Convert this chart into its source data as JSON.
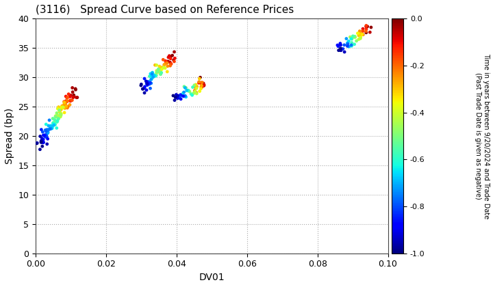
{
  "title": "(3116)   Spread Curve based on Reference Prices",
  "xlabel": "DV01",
  "ylabel": "Spread (bp)",
  "xlim": [
    0,
    0.1
  ],
  "ylim": [
    0,
    40
  ],
  "xticks": [
    0.0,
    0.02,
    0.04,
    0.06,
    0.08,
    0.1
  ],
  "yticks": [
    0,
    5,
    10,
    15,
    20,
    25,
    30,
    35,
    40
  ],
  "colorbar_label_line1": "Time in years between 9/20/2024 and Trade Date",
  "colorbar_label_line2": "(Past Trade Date is given as negative)",
  "colorbar_vmin": -1.0,
  "colorbar_vmax": 0.0,
  "colorbar_ticks": [
    0.0,
    -0.2,
    -0.4,
    -0.6,
    -0.8,
    -1.0
  ],
  "point_size": 12,
  "colormap": "jet",
  "background_color": "#ffffff",
  "grid_color": "#aaaaaa",
  "figsize": [
    7.2,
    4.2
  ],
  "dpi": 100
}
